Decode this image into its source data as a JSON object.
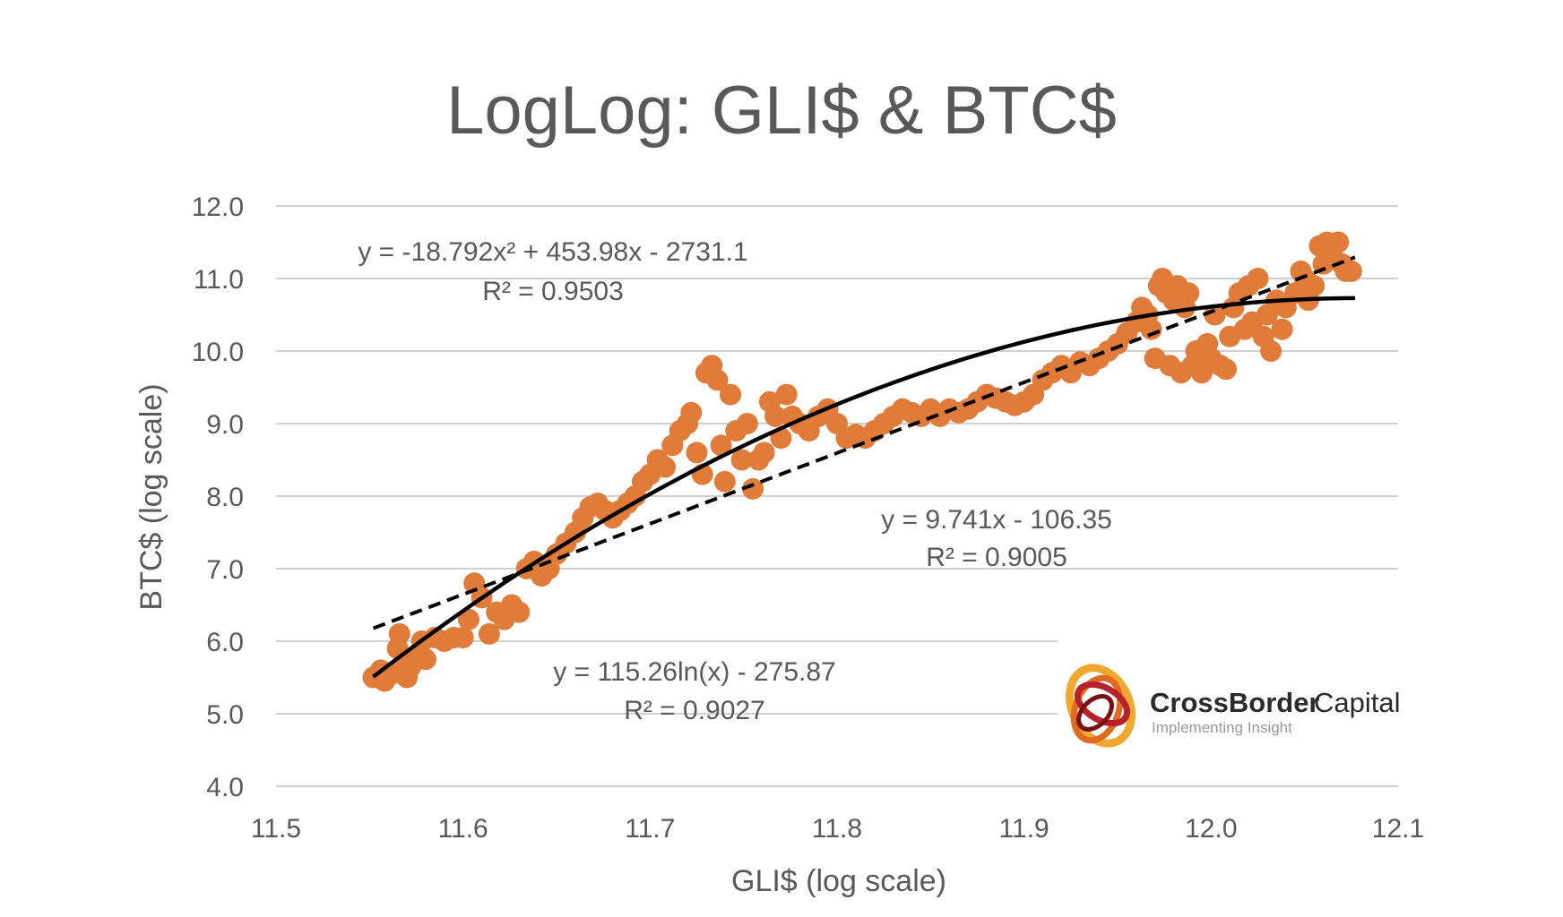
{
  "chart_data": {
    "type": "scatter",
    "title": "LogLog: GLI$ & BTC$",
    "xlabel": "GLI$ (log scale)",
    "ylabel": "BTC$ (log scale)",
    "xlim": [
      11.5,
      12.1
    ],
    "ylim": [
      4.0,
      12.0
    ],
    "x_ticks": [
      "11.5",
      "11.6",
      "11.7",
      "11.8",
      "11.9",
      "12.0",
      "12.1"
    ],
    "y_ticks": [
      "4.0",
      "5.0",
      "6.0",
      "7.0",
      "8.0",
      "9.0",
      "10.0",
      "11.0",
      "12.0"
    ],
    "grid": "horizontal",
    "series": [
      {
        "color": "#E07B39",
        "points": [
          [
            11.552,
            5.5
          ],
          [
            11.556,
            5.6
          ],
          [
            11.558,
            5.45
          ],
          [
            11.562,
            5.55
          ],
          [
            11.565,
            5.9
          ],
          [
            11.566,
            6.1
          ],
          [
            11.568,
            5.7
          ],
          [
            11.57,
            5.5
          ],
          [
            11.572,
            5.65
          ],
          [
            11.575,
            5.8
          ],
          [
            11.578,
            6.0
          ],
          [
            11.58,
            5.75
          ],
          [
            11.585,
            6.05
          ],
          [
            11.59,
            6.0
          ],
          [
            11.595,
            6.05
          ],
          [
            11.6,
            6.05
          ],
          [
            11.603,
            6.3
          ],
          [
            11.606,
            6.8
          ],
          [
            11.61,
            6.6
          ],
          [
            11.614,
            6.1
          ],
          [
            11.618,
            6.4
          ],
          [
            11.622,
            6.3
          ],
          [
            11.626,
            6.5
          ],
          [
            11.63,
            6.4
          ],
          [
            11.634,
            7.0
          ],
          [
            11.638,
            7.1
          ],
          [
            11.642,
            6.9
          ],
          [
            11.646,
            7.0
          ],
          [
            11.65,
            7.2
          ],
          [
            11.655,
            7.35
          ],
          [
            11.66,
            7.5
          ],
          [
            11.664,
            7.7
          ],
          [
            11.668,
            7.85
          ],
          [
            11.672,
            7.9
          ],
          [
            11.676,
            7.8
          ],
          [
            11.68,
            7.7
          ],
          [
            11.684,
            7.8
          ],
          [
            11.688,
            7.9
          ],
          [
            11.692,
            8.0
          ],
          [
            11.696,
            8.2
          ],
          [
            11.7,
            8.3
          ],
          [
            11.704,
            8.5
          ],
          [
            11.708,
            8.4
          ],
          [
            11.712,
            8.7
          ],
          [
            11.716,
            8.9
          ],
          [
            11.72,
            9.0
          ],
          [
            11.722,
            9.15
          ],
          [
            11.725,
            8.6
          ],
          [
            11.728,
            8.3
          ],
          [
            11.73,
            9.7
          ],
          [
            11.733,
            9.8
          ],
          [
            11.736,
            9.6
          ],
          [
            11.738,
            8.7
          ],
          [
            11.74,
            8.2
          ],
          [
            11.743,
            9.4
          ],
          [
            11.746,
            8.9
          ],
          [
            11.749,
            8.5
          ],
          [
            11.752,
            9.0
          ],
          [
            11.755,
            8.1
          ],
          [
            11.758,
            8.5
          ],
          [
            11.761,
            8.6
          ],
          [
            11.764,
            9.3
          ],
          [
            11.767,
            9.1
          ],
          [
            11.77,
            8.8
          ],
          [
            11.773,
            9.4
          ],
          [
            11.776,
            9.1
          ],
          [
            11.78,
            9.0
          ],
          [
            11.785,
            8.9
          ],
          [
            11.79,
            9.1
          ],
          [
            11.795,
            9.2
          ],
          [
            11.8,
            9.0
          ],
          [
            11.805,
            8.8
          ],
          [
            11.81,
            8.85
          ],
          [
            11.815,
            8.8
          ],
          [
            11.82,
            8.9
          ],
          [
            11.825,
            9.0
          ],
          [
            11.83,
            9.1
          ],
          [
            11.835,
            9.2
          ],
          [
            11.84,
            9.15
          ],
          [
            11.845,
            9.1
          ],
          [
            11.85,
            9.2
          ],
          [
            11.855,
            9.1
          ],
          [
            11.86,
            9.2
          ],
          [
            11.865,
            9.15
          ],
          [
            11.87,
            9.2
          ],
          [
            11.875,
            9.3
          ],
          [
            11.88,
            9.4
          ],
          [
            11.885,
            9.35
          ],
          [
            11.89,
            9.3
          ],
          [
            11.895,
            9.25
          ],
          [
            11.9,
            9.3
          ],
          [
            11.905,
            9.4
          ],
          [
            11.91,
            9.6
          ],
          [
            11.915,
            9.7
          ],
          [
            11.92,
            9.8
          ],
          [
            11.925,
            9.7
          ],
          [
            11.93,
            9.85
          ],
          [
            11.935,
            9.8
          ],
          [
            11.94,
            9.9
          ],
          [
            11.945,
            10.0
          ],
          [
            11.95,
            10.1
          ],
          [
            11.955,
            10.25
          ],
          [
            11.96,
            10.4
          ],
          [
            11.963,
            10.6
          ],
          [
            11.966,
            10.5
          ],
          [
            11.968,
            10.3
          ],
          [
            11.97,
            9.9
          ],
          [
            11.972,
            10.9
          ],
          [
            11.974,
            11.0
          ],
          [
            11.976,
            10.8
          ],
          [
            11.978,
            9.8
          ],
          [
            11.98,
            10.7
          ],
          [
            11.982,
            10.9
          ],
          [
            11.984,
            9.7
          ],
          [
            11.986,
            10.6
          ],
          [
            11.988,
            10.8
          ],
          [
            11.99,
            9.8
          ],
          [
            11.992,
            10.0
          ],
          [
            11.995,
            9.7
          ],
          [
            11.998,
            10.1
          ],
          [
            12.0,
            9.9
          ],
          [
            12.002,
            10.5
          ],
          [
            12.005,
            9.8
          ],
          [
            12.008,
            9.75
          ],
          [
            12.01,
            10.2
          ],
          [
            12.012,
            10.6
          ],
          [
            12.015,
            10.8
          ],
          [
            12.018,
            10.3
          ],
          [
            12.02,
            10.9
          ],
          [
            12.022,
            10.4
          ],
          [
            12.025,
            11.0
          ],
          [
            12.028,
            10.2
          ],
          [
            12.03,
            10.5
          ],
          [
            12.032,
            10.0
          ],
          [
            12.035,
            10.7
          ],
          [
            12.038,
            10.3
          ],
          [
            12.04,
            10.6
          ],
          [
            12.045,
            10.8
          ],
          [
            12.048,
            11.1
          ],
          [
            12.05,
            11.0
          ],
          [
            12.052,
            10.7
          ],
          [
            12.055,
            10.9
          ],
          [
            12.058,
            11.45
          ],
          [
            12.06,
            11.2
          ],
          [
            12.062,
            11.5
          ],
          [
            12.065,
            11.3
          ],
          [
            12.068,
            11.5
          ],
          [
            12.07,
            11.2
          ],
          [
            12.072,
            11.1
          ],
          [
            12.075,
            11.1
          ]
        ]
      }
    ],
    "trendlines": [
      {
        "kind": "polynomial",
        "style": "solid",
        "equation": "y = -18.792x² + 453.98x - 2731.1",
        "r2": "R² = 0.9503",
        "coefficients": [
          -18.792,
          453.98,
          -2731.1
        ],
        "x_range": [
          11.552,
          12.077
        ]
      },
      {
        "kind": "linear",
        "style": "dashed",
        "equation": "y = 9.741x - 106.35",
        "r2": "R² = 0.9005",
        "coefficients": [
          9.741,
          -106.35
        ],
        "x_range": [
          11.552,
          12.077
        ]
      },
      {
        "kind": "logarithmic",
        "equation": "y = 115.26ln(x) - 275.87",
        "r2": "R² = 0.9027"
      }
    ]
  },
  "logo": {
    "brand_bold": "CrossBorder",
    "brand_light": "Capital",
    "tagline": "Implementing Insight"
  }
}
